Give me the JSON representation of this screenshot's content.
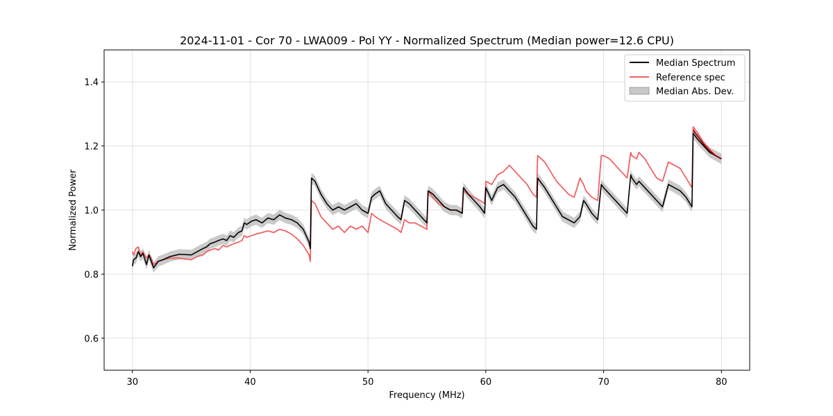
{
  "chart_data": {
    "type": "line",
    "title": "2024-11-01 - Cor 70 - LWA009 - Pol YY - Normalized Spectrum (Median power=12.6 CPU)",
    "xlabel": "Frequency (MHz)",
    "ylabel": "Normalized Power",
    "xlim": [
      27.6,
      82.4
    ],
    "ylim": [
      0.5,
      1.5
    ],
    "xticks": [
      30,
      40,
      50,
      60,
      70,
      80
    ],
    "yticks": [
      0.6,
      0.8,
      1.0,
      1.2,
      1.4
    ],
    "xtick_labels": [
      "30",
      "40",
      "50",
      "60",
      "70",
      "80"
    ],
    "ytick_labels": [
      "0.6",
      "0.8",
      "1.0",
      "1.2",
      "1.4"
    ],
    "grid": true,
    "legend_position": "top-right",
    "legend": {
      "median": "Median Spectrum",
      "reference": "Reference spec",
      "mad": "Median Abs. Dev."
    },
    "colors": {
      "median": "#000000",
      "reference": "#f06262",
      "mad_fill": "#b4b4b4",
      "overlap": "#8b0000",
      "grid": "#e0e0e0"
    },
    "mad_halfwidth": 0.016,
    "series": [
      {
        "name": "Median Spectrum",
        "x": [
          30.0,
          30.1,
          30.3,
          30.5,
          30.7,
          30.9,
          31.2,
          31.4,
          31.6,
          31.8,
          32.2,
          32.6,
          33.2,
          34.0,
          35.0,
          35.5,
          36.0,
          36.3,
          36.6,
          37.0,
          37.3,
          37.7,
          38.0,
          38.3,
          38.6,
          39.0,
          39.3,
          39.5,
          39.7,
          40.1,
          40.5,
          41.0,
          41.5,
          42.0,
          42.5,
          43.0,
          43.5,
          44.0,
          44.5,
          45.0,
          45.1,
          45.2,
          45.5,
          46.0,
          46.5,
          47.0,
          47.5,
          48.0,
          48.5,
          49.0,
          49.5,
          50.0,
          50.3,
          50.6,
          51.0,
          51.5,
          52.0,
          52.5,
          52.8,
          53.1,
          53.5,
          54.0,
          54.5,
          55.0,
          55.1,
          55.5,
          56.0,
          56.5,
          57.0,
          57.5,
          58.0,
          58.1,
          58.5,
          59.0,
          59.5,
          59.9,
          60.0,
          60.5,
          61.0,
          61.5,
          62.0,
          62.5,
          63.0,
          63.5,
          64.0,
          64.3,
          64.4,
          65.0,
          65.5,
          66.0,
          66.5,
          67.0,
          67.5,
          68.0,
          68.3,
          68.5,
          69.0,
          69.5,
          69.8,
          70.0,
          70.5,
          71.0,
          71.5,
          72.0,
          72.3,
          72.4,
          72.8,
          73.0,
          73.5,
          74.0,
          74.5,
          75.0,
          75.5,
          76.0,
          76.5,
          77.0,
          77.5,
          77.6,
          78.0,
          78.5,
          79.0,
          79.5,
          80.0
        ],
        "values": [
          0.825,
          0.845,
          0.85,
          0.87,
          0.855,
          0.865,
          0.83,
          0.86,
          0.84,
          0.82,
          0.84,
          0.845,
          0.855,
          0.862,
          0.86,
          0.87,
          0.88,
          0.885,
          0.895,
          0.9,
          0.905,
          0.91,
          0.905,
          0.92,
          0.915,
          0.93,
          0.935,
          0.96,
          0.955,
          0.965,
          0.97,
          0.96,
          0.975,
          0.97,
          0.985,
          0.975,
          0.97,
          0.96,
          0.94,
          0.9,
          0.88,
          1.1,
          1.09,
          1.05,
          1.02,
          1.0,
          1.01,
          1.0,
          1.01,
          1.02,
          1.0,
          0.99,
          1.04,
          1.05,
          1.06,
          1.02,
          1.0,
          0.98,
          0.97,
          1.03,
          1.02,
          1.0,
          0.98,
          0.96,
          1.06,
          1.05,
          1.03,
          1.01,
          1.0,
          1.0,
          0.99,
          1.07,
          1.05,
          1.03,
          1.01,
          0.99,
          1.07,
          1.03,
          1.07,
          1.08,
          1.06,
          1.04,
          1.01,
          0.98,
          0.95,
          0.94,
          1.1,
          1.07,
          1.04,
          1.01,
          0.98,
          0.97,
          0.96,
          0.98,
          1.03,
          1.02,
          0.99,
          0.97,
          1.08,
          1.07,
          1.05,
          1.03,
          1.01,
          0.99,
          1.11,
          1.1,
          1.08,
          1.09,
          1.07,
          1.05,
          1.03,
          1.01,
          1.08,
          1.07,
          1.06,
          1.04,
          1.01,
          1.24,
          1.22,
          1.2,
          1.18,
          1.17,
          1.16
        ],
        "color": "#000000"
      },
      {
        "name": "Reference spec",
        "x": [
          30.0,
          30.1,
          30.3,
          30.5,
          30.7,
          30.9,
          31.2,
          31.4,
          31.6,
          31.8,
          32.2,
          32.6,
          33.2,
          34.0,
          35.0,
          35.5,
          36.0,
          36.3,
          36.6,
          37.0,
          37.3,
          37.7,
          38.0,
          38.3,
          38.6,
          39.0,
          39.3,
          39.5,
          39.7,
          40.1,
          40.5,
          41.0,
          41.5,
          42.0,
          42.5,
          43.0,
          43.5,
          44.0,
          44.5,
          45.0,
          45.1,
          45.2,
          45.5,
          46.0,
          46.5,
          47.0,
          47.5,
          48.0,
          48.5,
          49.0,
          49.5,
          50.0,
          50.3,
          50.6,
          51.0,
          51.5,
          52.0,
          52.5,
          52.8,
          53.1,
          53.5,
          54.0,
          54.5,
          55.0,
          55.1,
          55.5,
          56.0,
          56.5,
          57.0,
          57.5,
          58.0,
          58.1,
          58.5,
          59.0,
          59.5,
          59.9,
          60.0,
          60.5,
          61.0,
          61.5,
          62.0,
          62.5,
          63.0,
          63.5,
          64.0,
          64.3,
          64.4,
          65.0,
          65.5,
          66.0,
          66.5,
          67.0,
          67.5,
          68.0,
          68.3,
          68.5,
          69.0,
          69.5,
          69.8,
          70.0,
          70.5,
          71.0,
          71.5,
          72.0,
          72.3,
          72.4,
          72.8,
          73.0,
          73.5,
          74.0,
          74.5,
          75.0,
          75.5,
          76.0,
          76.5,
          77.0,
          77.5,
          77.6,
          78.0,
          78.5,
          79.0,
          79.5,
          80.0
        ],
        "values": [
          0.87,
          0.86,
          0.88,
          0.885,
          0.86,
          0.87,
          0.85,
          0.86,
          0.85,
          0.83,
          0.84,
          0.845,
          0.85,
          0.85,
          0.845,
          0.855,
          0.86,
          0.87,
          0.875,
          0.88,
          0.875,
          0.89,
          0.885,
          0.89,
          0.895,
          0.9,
          0.905,
          0.92,
          0.915,
          0.92,
          0.925,
          0.93,
          0.935,
          0.93,
          0.94,
          0.935,
          0.925,
          0.91,
          0.89,
          0.86,
          0.84,
          1.03,
          1.02,
          0.98,
          0.96,
          0.94,
          0.95,
          0.93,
          0.95,
          0.94,
          0.95,
          0.93,
          0.99,
          0.98,
          0.97,
          0.96,
          0.95,
          0.94,
          0.93,
          0.97,
          0.96,
          0.96,
          0.95,
          0.94,
          1.06,
          1.04,
          1.02,
          1.01,
          1.0,
          1.0,
          0.99,
          1.06,
          1.05,
          1.04,
          1.03,
          1.02,
          1.09,
          1.08,
          1.11,
          1.12,
          1.14,
          1.12,
          1.1,
          1.08,
          1.05,
          1.04,
          1.17,
          1.15,
          1.12,
          1.09,
          1.07,
          1.05,
          1.04,
          1.1,
          1.08,
          1.06,
          1.04,
          1.03,
          1.17,
          1.17,
          1.16,
          1.14,
          1.12,
          1.1,
          1.18,
          1.17,
          1.16,
          1.18,
          1.16,
          1.13,
          1.1,
          1.09,
          1.15,
          1.14,
          1.13,
          1.1,
          1.07,
          1.26,
          1.24,
          1.21,
          1.19,
          1.17,
          1.16
        ],
        "color": "#f06262"
      }
    ]
  }
}
